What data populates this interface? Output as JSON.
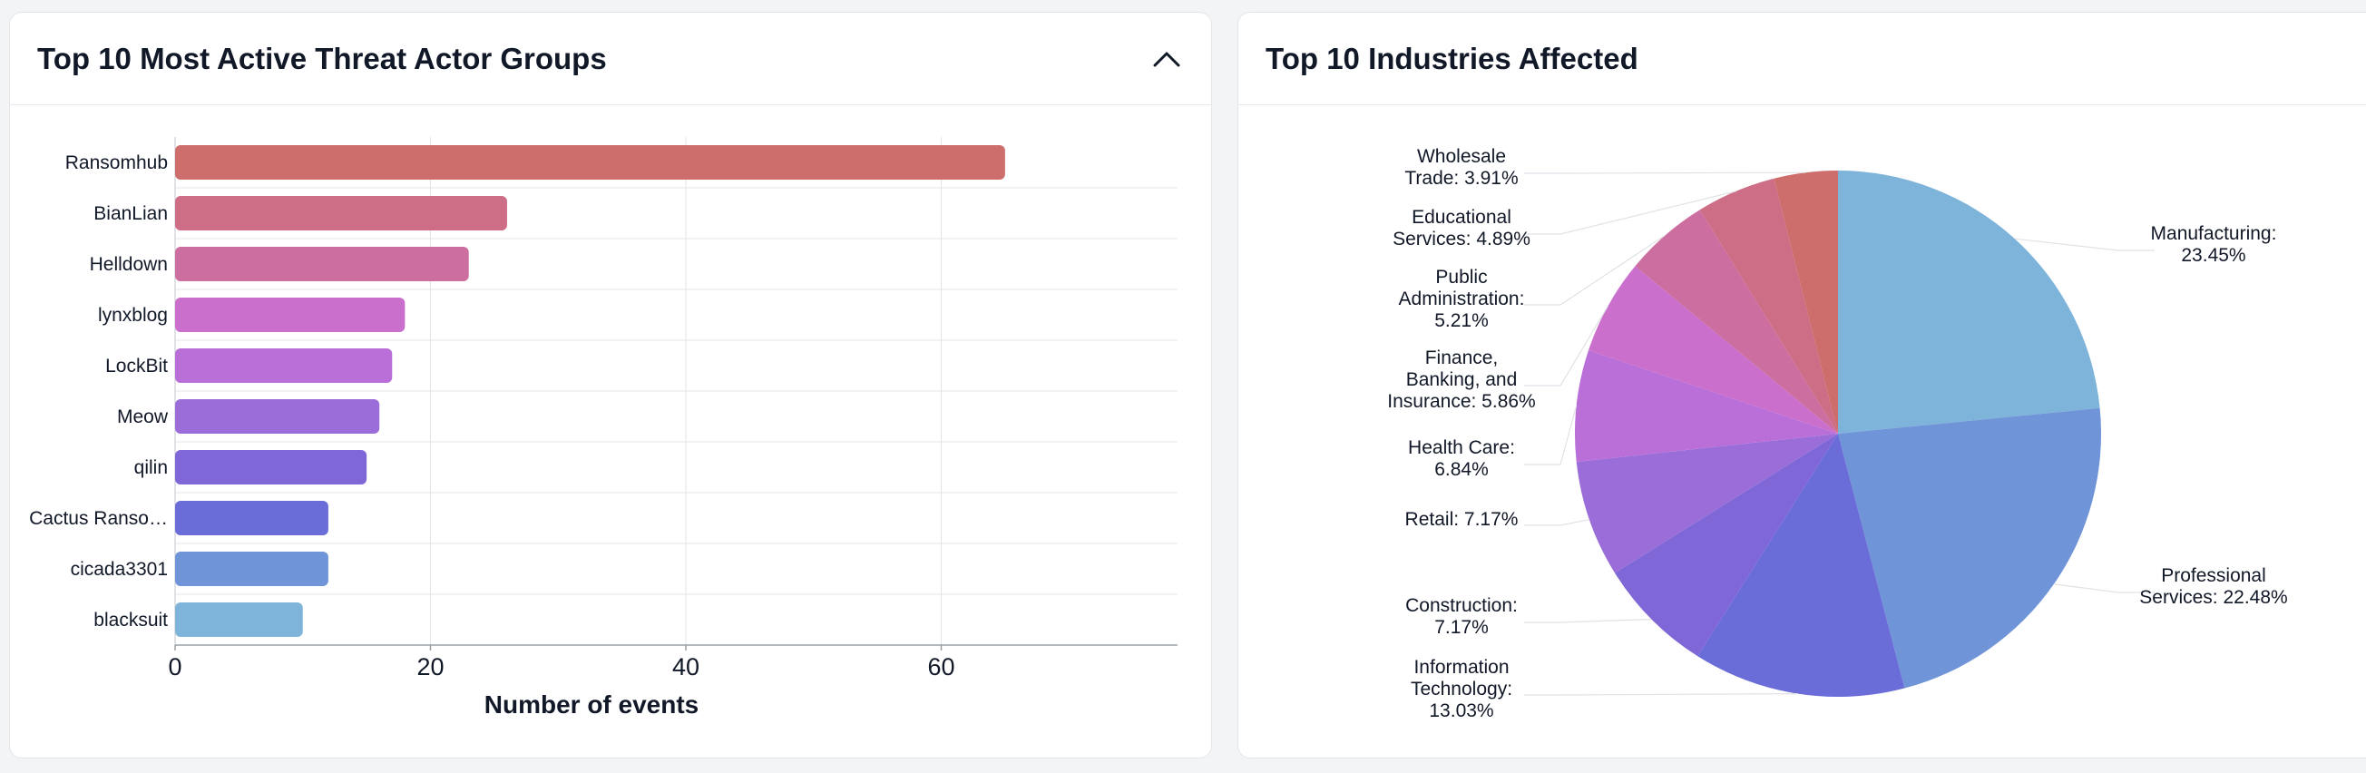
{
  "left_card": {
    "title": "Top 10 Most Active Threat Actor Groups"
  },
  "right_card": {
    "title": "Top 10 Industries Affected"
  },
  "icons": {
    "collapse": "chevron-up-icon"
  },
  "chart_data": [
    {
      "type": "bar",
      "orientation": "horizontal",
      "title": "Top 10 Most Active Threat Actor Groups",
      "categories": [
        "Ransomhub",
        "BianLian",
        "Helldown",
        "lynxblog",
        "LockBit",
        "Meow",
        "qilin",
        "Cactus Ranso…",
        "cicada3301",
        "blacksuit"
      ],
      "values": [
        65,
        26,
        23,
        18,
        17,
        16,
        15,
        12,
        12,
        10
      ],
      "colors": [
        "#cd6e6c",
        "#cd6e86",
        "#cd6ea0",
        "#cb6fcc",
        "#ba6fd8",
        "#9a6dd8",
        "#7f67d8",
        "#6a6cd8",
        "#7094d8",
        "#7eb4da"
      ],
      "xlabel": "Number of events",
      "ylabel": "",
      "xlim": [
        0,
        78.5
      ],
      "xticks": [
        0,
        20,
        40,
        60
      ],
      "grid": true
    },
    {
      "type": "pie",
      "title": "Top 10 Industries Affected",
      "labels": [
        "Manufacturing",
        "Professional Services",
        "Information Technology",
        "Construction",
        "Retail",
        "Health Care",
        "Finance, Banking, and Insurance",
        "Public Administration",
        "Educational Services",
        "Wholesale Trade"
      ],
      "values": [
        23.45,
        22.48,
        13.03,
        7.17,
        7.17,
        6.84,
        5.86,
        5.21,
        4.89,
        3.91
      ],
      "display_labels": [
        [
          "Manufacturing:",
          "23.45%"
        ],
        [
          "Professional",
          "Services: 22.48%"
        ],
        [
          "Information",
          "Technology:",
          "13.03%"
        ],
        [
          "Construction:",
          "7.17%"
        ],
        [
          "Retail: 7.17%"
        ],
        [
          "Health Care:",
          "6.84%"
        ],
        [
          "Finance,",
          "Banking, and",
          "Insurance: 5.86%"
        ],
        [
          "Public",
          "Administration:",
          "5.21%"
        ],
        [
          "Educational",
          "Services: 4.89%"
        ],
        [
          "Wholesale",
          "Trade: 3.91%"
        ]
      ],
      "colors": [
        "#7eb4da",
        "#7094d8",
        "#6a6cd8",
        "#7f67d8",
        "#9a6dd8",
        "#ba6fd8",
        "#cb6fcc",
        "#cd6ea0",
        "#cd6e86",
        "#cd6e6c"
      ],
      "start_angle": "top, clockwise",
      "legend": "none"
    }
  ]
}
